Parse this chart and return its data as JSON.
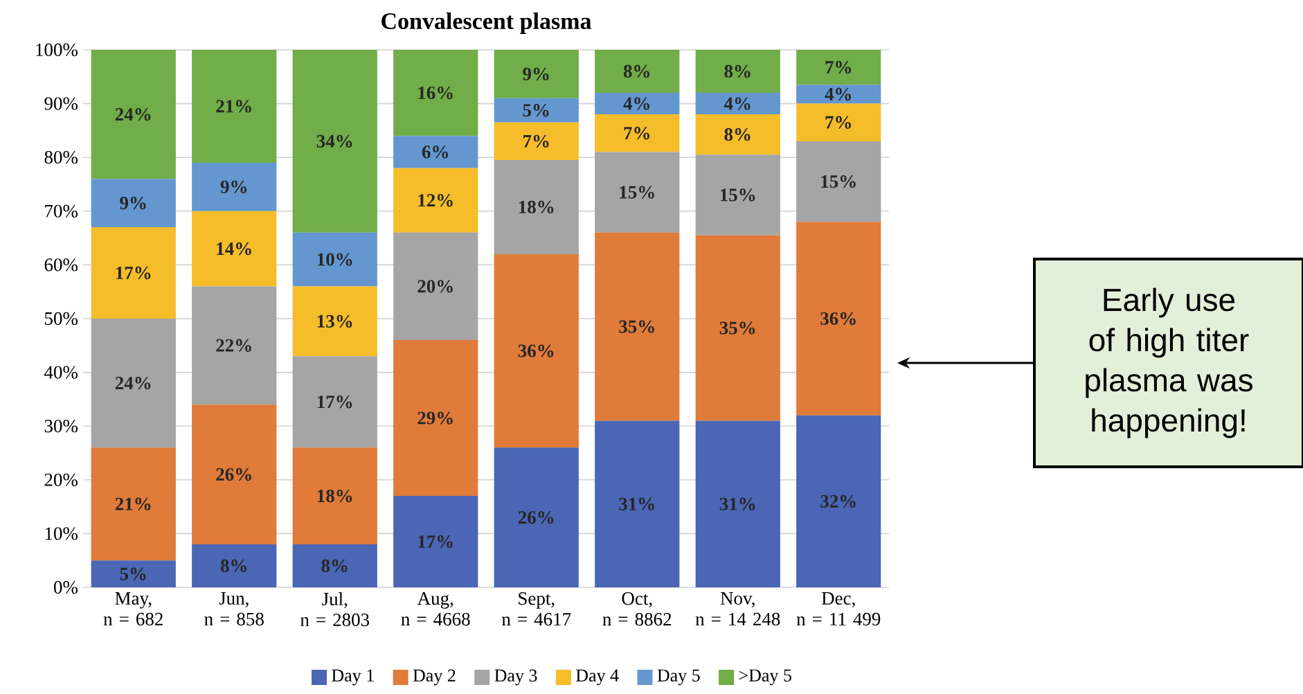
{
  "chart_data": {
    "type": "bar",
    "title": "Convalescent plasma",
    "stacked": true,
    "grid": "y",
    "legend": "bottom",
    "categories": [
      "May, n = 682",
      "Jun, n = 858",
      "Jul, n = 2803",
      "Aug, n = 4668",
      "Sept, n = 4617",
      "Oct, n = 8862",
      "Nov, n = 14 248",
      "Dec, n = 11 499"
    ],
    "series": [
      {
        "name": "Day 1",
        "color": "#4a66b4",
        "values": [
          5,
          8,
          8,
          17,
          26,
          31,
          31,
          32
        ],
        "value_labels": [
          "5%",
          "8%",
          "8%",
          "17%",
          "26%",
          "31%",
          "31%",
          "32%"
        ]
      },
      {
        "name": "Day 2",
        "color": "#e07b39",
        "values": [
          21,
          26,
          18,
          29,
          36,
          35,
          34.5,
          36
        ],
        "value_labels": [
          "21%",
          "26%",
          "18%",
          "29%",
          "36%",
          "35%",
          "35%",
          "36%"
        ]
      },
      {
        "name": "Day 3",
        "color": "#a5a5a5",
        "values": [
          24,
          22,
          17,
          20,
          17.5,
          15,
          15,
          15
        ],
        "value_labels": [
          "24%",
          "22%",
          "17%",
          "20%",
          "18%",
          "15%",
          "15%",
          "15%"
        ]
      },
      {
        "name": "Day 4",
        "color": "#f6bd2a",
        "values": [
          17,
          14,
          13,
          12,
          7,
          7,
          7.5,
          7
        ],
        "value_labels": [
          "17%",
          "14%",
          "13%",
          "12%",
          "7%",
          "7%",
          "8%",
          "7%"
        ]
      },
      {
        "name": "Day 5",
        "color": "#6497d0",
        "values": [
          9,
          9,
          10,
          6,
          4.5,
          4,
          4,
          3.5
        ],
        "value_labels": [
          "9%",
          "9%",
          "10%",
          "6%",
          "5%",
          "4%",
          "4%",
          "4%"
        ]
      },
      {
        "name": ">Day 5",
        "color": "#71ad48",
        "values": [
          24,
          21,
          34,
          16,
          9,
          8,
          8,
          6.5
        ],
        "value_labels": [
          "24%",
          "21%",
          "34%",
          "16%",
          "9%",
          "8%",
          "8%",
          "7%"
        ]
      }
    ],
    "ylim": [
      0,
      100
    ],
    "yticks": [
      {
        "value": 0,
        "label": "0%"
      },
      {
        "value": 10,
        "label": "10%"
      },
      {
        "value": 20,
        "label": "20%"
      },
      {
        "value": 30,
        "label": "30%"
      },
      {
        "value": 40,
        "label": "40%"
      },
      {
        "value": 50,
        "label": "50%"
      },
      {
        "value": 60,
        "label": "60%"
      },
      {
        "value": 70,
        "label": "70%"
      },
      {
        "value": 80,
        "label": "80%"
      },
      {
        "value": 90,
        "label": "90%"
      },
      {
        "value": 100,
        "label": "100%"
      }
    ],
    "annotations": [
      "Early use of high titer plasma was happening!"
    ]
  }
}
